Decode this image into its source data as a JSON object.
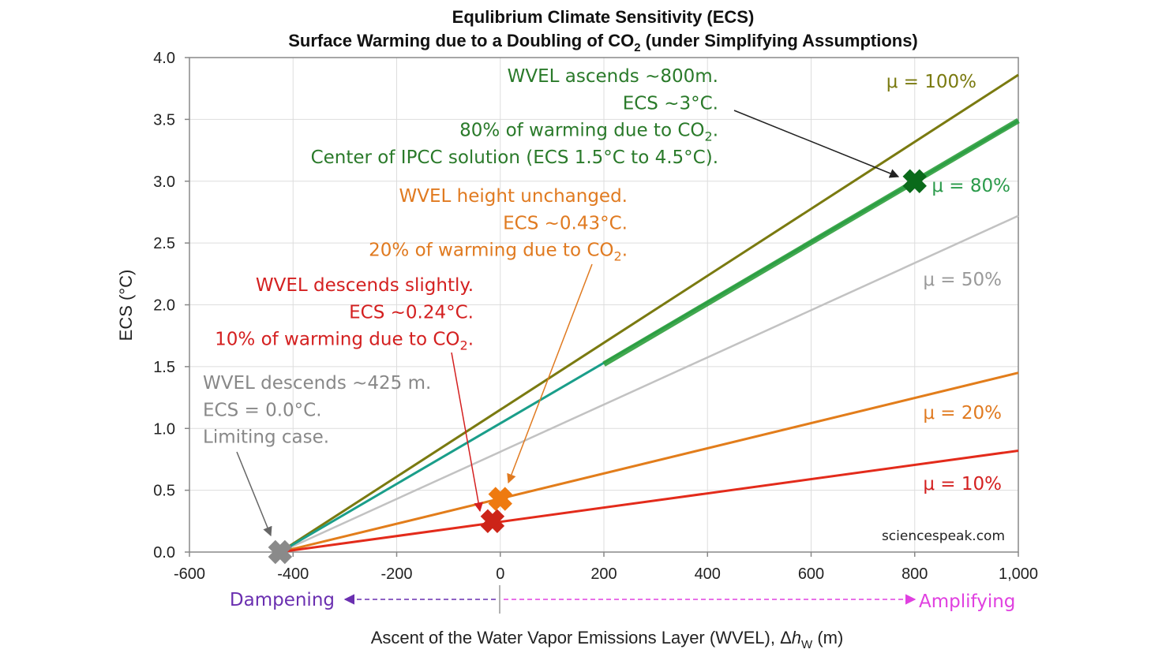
{
  "chart_data": {
    "type": "line",
    "title_line1": "Equlibrium Climate Sensitivity (ECS)",
    "title_line2_pre": "Surface Warming due to a Doubling of CO",
    "title_line2_sub": "2",
    "title_line2_post": " (under Simplifying Assumptions)",
    "ylabel": "ECS  (°C)",
    "xlabel_pre": "Ascent of the Water Vapor Emissions Layer (WVEL), Δ",
    "xlabel_italic": "h",
    "xlabel_sub": "W",
    "xlabel_post": " (m)",
    "xlim": [
      -600,
      1000
    ],
    "ylim": [
      0,
      4
    ],
    "x_ticks": [
      {
        "value": -600,
        "label": "-600"
      },
      {
        "value": -400,
        "label": "-400"
      },
      {
        "value": -200,
        "label": "-200"
      },
      {
        "value": 0,
        "label": "0"
      },
      {
        "value": 200,
        "label": "200"
      },
      {
        "value": 400,
        "label": "400"
      },
      {
        "value": 600,
        "label": "600"
      },
      {
        "value": 800,
        "label": "800"
      },
      {
        "value": 1000,
        "label": "1,000"
      }
    ],
    "y_ticks": [
      {
        "value": 0.0,
        "label": "0.0"
      },
      {
        "value": 0.5,
        "label": "0.5"
      },
      {
        "value": 1.0,
        "label": "1.0"
      },
      {
        "value": 1.5,
        "label": "1.5"
      },
      {
        "value": 2.0,
        "label": "2.0"
      },
      {
        "value": 2.5,
        "label": "2.5"
      },
      {
        "value": 3.0,
        "label": "3.0"
      },
      {
        "value": 3.5,
        "label": "3.5"
      },
      {
        "value": 4.0,
        "label": "4.0"
      }
    ],
    "series": [
      {
        "name": "μ = 100%",
        "color": "#7a7a10",
        "x": [
          -425,
          1000
        ],
        "y": [
          0,
          3.86
        ]
      },
      {
        "name": "μ = 80%",
        "color": "#1a9e8a",
        "x": [
          -425,
          1000
        ],
        "y": [
          0,
          3.49
        ]
      },
      {
        "name": "μ = 50%",
        "color": "#c2c2c2",
        "x": [
          -425,
          1000
        ],
        "y": [
          0,
          2.72
        ]
      },
      {
        "name": "μ = 20%",
        "color": "#e27d1b",
        "x": [
          -425,
          1000
        ],
        "y": [
          0,
          1.45
        ]
      },
      {
        "name": "μ = 10%",
        "color": "#e32b1b",
        "x": [
          -425,
          1000
        ],
        "y": [
          0,
          0.82
        ]
      }
    ],
    "highlight_segment": {
      "color": "#2e9e3c",
      "x": [
        200,
        1000
      ],
      "y": [
        1.52,
        3.49
      ]
    },
    "markers": [
      {
        "x": -425,
        "y": 0.0,
        "color": "#8a8a8a"
      },
      {
        "x": -15,
        "y": 0.25,
        "color": "#cc2418"
      },
      {
        "x": 0,
        "y": 0.43,
        "color": "#ee7a10"
      },
      {
        "x": 800,
        "y": 3.0,
        "color": "#0a6a1a"
      }
    ],
    "annotations": [
      {
        "color": "#2a7a2a",
        "lines": [
          "WVEL ascends ~800m.",
          "ECS ~3°C.",
          "80% of warming due to CO|2|.",
          "Center of IPCC  solution (ECS 1.5°C to 4.5°C)."
        ]
      },
      {
        "color": "#e07a20",
        "lines": [
          "WVEL height unchanged.",
          "ECS ~0.43°C.",
          "20% of warming due to CO|2|."
        ]
      },
      {
        "color": "#d42020",
        "lines": [
          "WVEL descends slightly.",
          "ECS ~0.24°C.",
          "10% of warming due to CO|2|."
        ]
      },
      {
        "color": "#888888",
        "lines": [
          "WVEL descends ~425 m.",
          "ECS = 0.0°C.",
          "Limiting case."
        ]
      }
    ],
    "series_labels": [
      {
        "text": "μ = 100%",
        "color": "#7a7a10"
      },
      {
        "text": "μ = 80%",
        "color": "#2a9a4a"
      },
      {
        "text": "μ = 50%",
        "color": "#999999"
      },
      {
        "text": "μ = 20%",
        "color": "#e07a20"
      },
      {
        "text": "μ = 10%",
        "color": "#d42020"
      }
    ],
    "credit": "sciencespeak.com",
    "dampening_label": "Dampening",
    "amplifying_label": "Amplifying",
    "dampening_color": "#6a2fb0",
    "amplifying_color": "#e040e0",
    "neg_tick_color": "#cc2222",
    "grid": true
  }
}
